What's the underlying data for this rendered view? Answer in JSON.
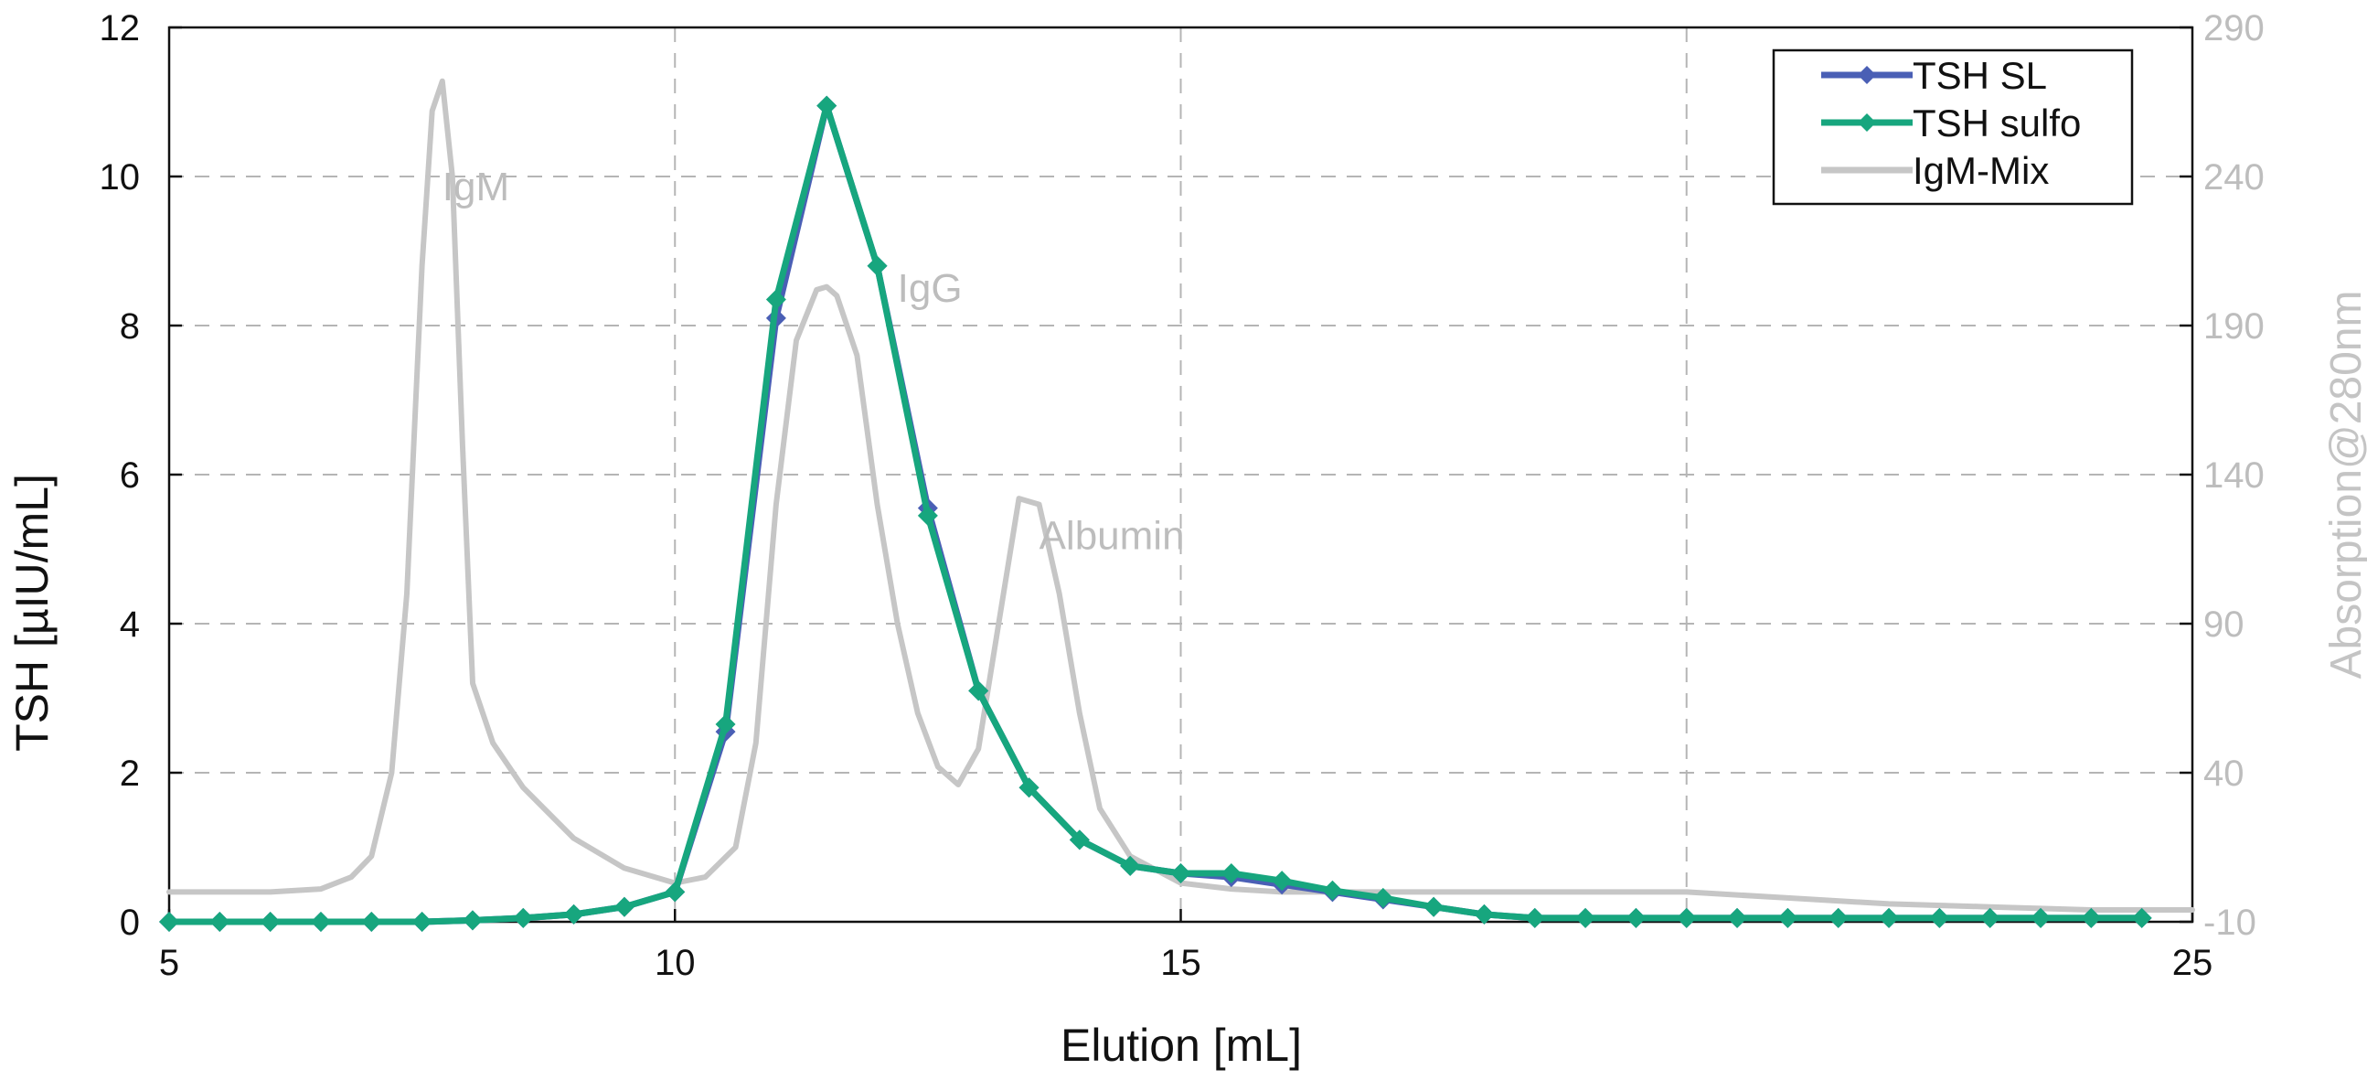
{
  "chart_data": {
    "type": "line",
    "title": "",
    "xlabel": "Elution [mL]",
    "ylabel": "TSH [µIU/mL]",
    "y2label": "Absorption@280nm",
    "xlim": [
      5,
      25
    ],
    "ylim": [
      0,
      12
    ],
    "y2lim": [
      -10,
      290
    ],
    "xticks": [
      "5",
      "10",
      "15",
      "25"
    ],
    "yticks": [
      "0",
      "2",
      "4",
      "6",
      "8",
      "10",
      "12"
    ],
    "y2ticks": [
      "-10",
      "40",
      "90",
      "140",
      "190",
      "240",
      "290"
    ],
    "grid": "dashed",
    "legend_position": "top-right",
    "annotations": [
      {
        "text": "IgM",
        "x": 7.7,
        "y2": 232
      },
      {
        "text": "IgG",
        "x": 12.2,
        "y2": 198
      },
      {
        "text": "Albumin",
        "x": 13.6,
        "y2": 115
      }
    ],
    "series": [
      {
        "name": "TSH SL",
        "axis": "left",
        "color": "#4a5fb5",
        "x": [
          5,
          5.5,
          6,
          6.5,
          7,
          7.5,
          8,
          8.5,
          9,
          9.5,
          10,
          10.5,
          11,
          11.5,
          12,
          12.5,
          13,
          13.5,
          14,
          14.5,
          15,
          15.5,
          16,
          16.5,
          17,
          17.5,
          18,
          18.5,
          19,
          19.5,
          20,
          20.5,
          21,
          21.5,
          22,
          22.5,
          23,
          23.5,
          24,
          24.5
        ],
        "y": [
          0,
          0,
          0,
          0,
          0,
          0,
          0.02,
          0.05,
          0.1,
          0.2,
          0.4,
          2.55,
          8.1,
          10.95,
          8.8,
          5.55,
          3.1,
          1.8,
          1.1,
          0.75,
          0.65,
          0.6,
          0.5,
          0.4,
          0.3,
          0.2,
          0.1,
          0.05,
          0.05,
          0.05,
          0.05,
          0.05,
          0.05,
          0.05,
          0.05,
          0.05,
          0.05,
          0.05,
          0.05,
          0.05
        ]
      },
      {
        "name": "TSH sulfo",
        "axis": "left",
        "color": "#17a67e",
        "x": [
          5,
          5.5,
          6,
          6.5,
          7,
          7.5,
          8,
          8.5,
          9,
          9.5,
          10,
          10.5,
          11,
          11.5,
          12,
          12.5,
          13,
          13.5,
          14,
          14.5,
          15,
          15.5,
          16,
          16.5,
          17,
          17.5,
          18,
          18.5,
          19,
          19.5,
          20,
          20.5,
          21,
          21.5,
          22,
          22.5,
          23,
          23.5,
          24,
          24.5
        ],
        "y": [
          0,
          0,
          0,
          0,
          0,
          0,
          0.02,
          0.05,
          0.1,
          0.2,
          0.4,
          2.65,
          8.35,
          10.95,
          8.8,
          5.45,
          3.1,
          1.8,
          1.1,
          0.75,
          0.65,
          0.65,
          0.55,
          0.42,
          0.32,
          0.2,
          0.1,
          0.05,
          0.05,
          0.05,
          0.05,
          0.05,
          0.05,
          0.05,
          0.05,
          0.05,
          0.05,
          0.05,
          0.05,
          0.05
        ]
      },
      {
        "name": "IgM-Mix",
        "axis": "right",
        "color": "#c6c6c6",
        "x": [
          5,
          5.5,
          6,
          6.5,
          6.8,
          7.0,
          7.2,
          7.35,
          7.5,
          7.6,
          7.7,
          7.8,
          7.9,
          8.0,
          8.2,
          8.5,
          9.0,
          9.5,
          10.0,
          10.3,
          10.6,
          10.8,
          11.0,
          11.2,
          11.4,
          11.5,
          11.6,
          11.8,
          12.0,
          12.2,
          12.4,
          12.6,
          12.8,
          13.0,
          13.2,
          13.4,
          13.6,
          13.8,
          14.0,
          14.2,
          14.5,
          15.0,
          15.5,
          16.0,
          17.0,
          18.0,
          19.0,
          20.0,
          21.0,
          22.0,
          23.0,
          24.0,
          25.0
        ],
        "y": [
          0,
          0,
          0,
          1,
          5,
          12,
          40,
          100,
          210,
          262,
          272,
          240,
          150,
          70,
          50,
          35,
          18,
          8,
          3,
          5,
          15,
          50,
          130,
          185,
          202,
          203,
          200,
          180,
          130,
          90,
          60,
          42,
          36,
          48,
          90,
          132,
          130,
          100,
          60,
          28,
          12,
          3,
          1,
          0,
          0,
          0,
          0,
          0,
          -2,
          -4,
          -5,
          -6,
          -6
        ]
      }
    ]
  }
}
